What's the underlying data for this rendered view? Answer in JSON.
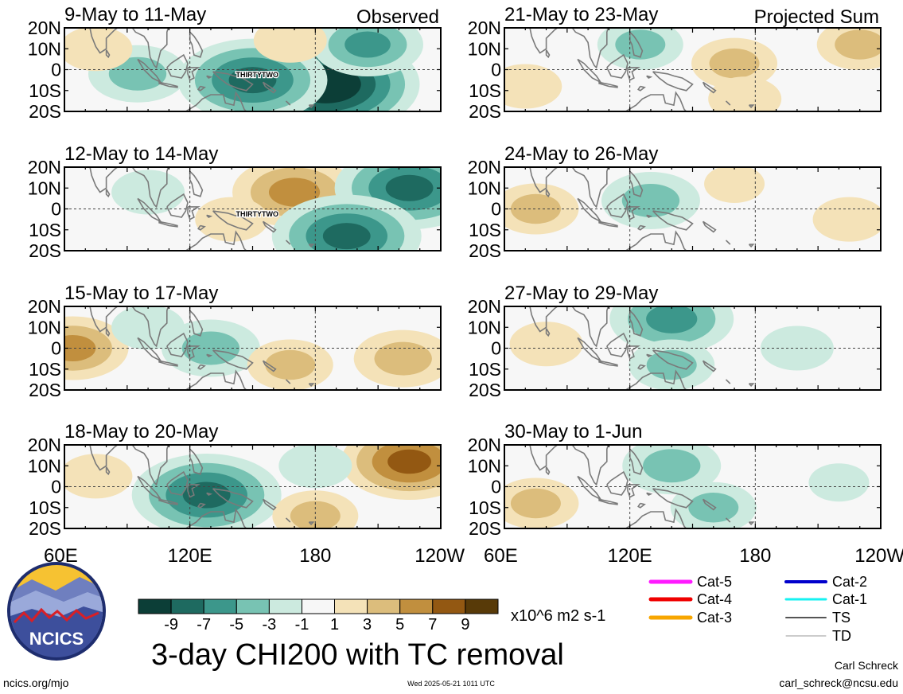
{
  "chart_data": {
    "type": "heatmap",
    "title": "3-day CHI200 with TC removal",
    "units": "x10^6 m2 s-1",
    "observed_label": "Observed",
    "projected_label": "Projected Sum",
    "lat_ticks": [
      "20N",
      "10N",
      "0",
      "10S",
      "20S"
    ],
    "lon_ticks": [
      "60E",
      "120E",
      "180",
      "120W"
    ],
    "panels": [
      {
        "title": "9-May to 11-May",
        "column": "Observed",
        "storm_label": "THIRTYTWO",
        "anomalies": [
          {
            "lon": 185,
            "lat": -7,
            "value": -11
          },
          {
            "lon": 150,
            "lat": -5,
            "value": -8
          },
          {
            "lon": 205,
            "lat": 12,
            "value": -5
          },
          {
            "lon": 95,
            "lat": -2,
            "value": -4
          },
          {
            "lon": 168,
            "lat": 14,
            "value": 2
          },
          {
            "lon": 75,
            "lat": 10,
            "value": 2
          }
        ]
      },
      {
        "title": "12-May to 14-May",
        "column": "Observed",
        "storm_label": "THIRTYTWO",
        "anomalies": [
          {
            "lon": 170,
            "lat": 8,
            "value": 6
          },
          {
            "lon": 140,
            "lat": -5,
            "value": 2
          },
          {
            "lon": 225,
            "lat": 10,
            "value": -8
          },
          {
            "lon": 195,
            "lat": -13,
            "value": -8
          },
          {
            "lon": 100,
            "lat": 8,
            "value": -2
          }
        ]
      },
      {
        "title": "15-May to 17-May",
        "column": "Observed",
        "anomalies": [
          {
            "lon": 64,
            "lat": 0,
            "value": 5
          },
          {
            "lon": 130,
            "lat": 0,
            "value": -4
          },
          {
            "lon": 168,
            "lat": -8,
            "value": 3
          },
          {
            "lon": 222,
            "lat": -5,
            "value": 4
          },
          {
            "lon": 100,
            "lat": 10,
            "value": -2
          }
        ]
      },
      {
        "title": "18-May to 20-May",
        "column": "Observed",
        "anomalies": [
          {
            "lon": 128,
            "lat": -4,
            "value": -8
          },
          {
            "lon": 225,
            "lat": 12,
            "value": 7
          },
          {
            "lon": 180,
            "lat": -14,
            "value": 3
          },
          {
            "lon": 75,
            "lat": 5,
            "value": 2
          },
          {
            "lon": 180,
            "lat": 10,
            "value": -2
          }
        ]
      },
      {
        "title": "21-May to 23-May",
        "column": "Projected Sum",
        "anomalies": [
          {
            "lon": 125,
            "lat": 12,
            "value": -3
          },
          {
            "lon": 170,
            "lat": 3,
            "value": 3
          },
          {
            "lon": 230,
            "lat": 12,
            "value": 3
          },
          {
            "lon": 175,
            "lat": -14,
            "value": 2
          },
          {
            "lon": 70,
            "lat": -8,
            "value": 2
          }
        ]
      },
      {
        "title": "24-May to 26-May",
        "column": "Projected Sum",
        "anomalies": [
          {
            "lon": 130,
            "lat": 4,
            "value": -4
          },
          {
            "lon": 75,
            "lat": 0,
            "value": 3
          },
          {
            "lon": 225,
            "lat": -5,
            "value": 2
          },
          {
            "lon": 170,
            "lat": 12,
            "value": 1
          }
        ]
      },
      {
        "title": "27-May to 29-May",
        "column": "Projected Sum",
        "anomalies": [
          {
            "lon": 140,
            "lat": 14,
            "value": -6
          },
          {
            "lon": 140,
            "lat": -8,
            "value": -3
          },
          {
            "lon": 80,
            "lat": 2,
            "value": 2
          },
          {
            "lon": 200,
            "lat": 0,
            "value": -2
          }
        ]
      },
      {
        "title": "30-May to 1-Jun",
        "column": "Projected Sum",
        "anomalies": [
          {
            "lon": 140,
            "lat": 10,
            "value": -4
          },
          {
            "lon": 160,
            "lat": -10,
            "value": -3
          },
          {
            "lon": 75,
            "lat": -8,
            "value": 3
          },
          {
            "lon": 220,
            "lat": 2,
            "value": -1
          }
        ]
      }
    ],
    "colorbar": {
      "tick_labels": [
        "-9",
        "-7",
        "-5",
        "-3",
        "-1",
        "1",
        "3",
        "5",
        "7",
        "9"
      ],
      "colors": [
        "#0c3e37",
        "#1e6a60",
        "#3c978b",
        "#78c3b3",
        "#cceadf",
        "#f7f7f7",
        "#f4e2b8",
        "#dcbd7c",
        "#c18f3e",
        "#935812",
        "#583a08"
      ]
    },
    "land_fill": "#f7f7f7",
    "coast_color": "#7a7a7a"
  },
  "legend": {
    "items": [
      {
        "label": "Cat-5",
        "color": "#ff1aff"
      },
      {
        "label": "Cat-4",
        "color": "#f00000"
      },
      {
        "label": "Cat-3",
        "color": "#f7a600"
      },
      {
        "label": "Cat-2",
        "color": "#0000cc"
      },
      {
        "label": "Cat-1",
        "color": "#16f2f2"
      },
      {
        "label": "TS",
        "color": "#555555"
      },
      {
        "label": "TD",
        "color": "#9a9a9a"
      }
    ]
  },
  "logo": {
    "text": "NCICS"
  },
  "footer": {
    "url": "ncics.org/mjo",
    "timestamp": "Wed 2025-05-21 1011 UTC",
    "author": "Carl Schreck",
    "email": "carl_schreck@ncsu.edu"
  }
}
